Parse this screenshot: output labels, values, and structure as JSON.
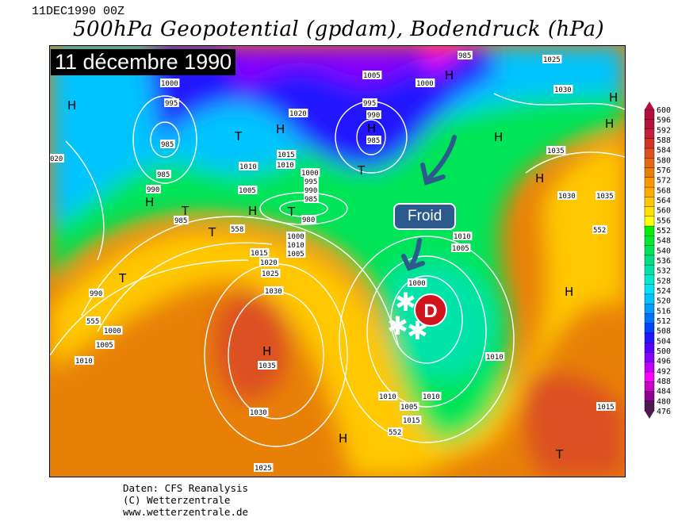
{
  "header": {
    "date_line": "11DEC1990 00Z",
    "title": "500hPa Geopotential (gpdam), Bodendruck (hPa)"
  },
  "banner": "11 décembre 1990",
  "annotations": {
    "froid_label": "Froid",
    "depression_label": "D",
    "snow_icon": "snowflake-icon",
    "arrow_icon": "arrow-down-icon"
  },
  "colorbar": {
    "labels": [
      "600",
      "596",
      "592",
      "588",
      "584",
      "580",
      "576",
      "572",
      "568",
      "564",
      "560",
      "556",
      "552",
      "548",
      "540",
      "536",
      "532",
      "528",
      "524",
      "520",
      "516",
      "512",
      "508",
      "504",
      "500",
      "496",
      "492",
      "488",
      "484",
      "480",
      "476"
    ],
    "colors": [
      "#b3103c",
      "#b8103c",
      "#c4203a",
      "#cf3424",
      "#dc5020",
      "#e56814",
      "#e88008",
      "#ff9900",
      "#ffaa00",
      "#ffc800",
      "#ffe000",
      "#ffff00",
      "#00f000",
      "#00ea30",
      "#00e458",
      "#00de80",
      "#00e4aa",
      "#00e8d0",
      "#00e4f4",
      "#00c4ff",
      "#009cff",
      "#0070ff",
      "#0044ff",
      "#2414ff",
      "#5400ff",
      "#8400ff",
      "#c000ff",
      "#ff00ff",
      "#c800c8",
      "#900090",
      "#501850"
    ]
  },
  "isobar_labels": [
    "1000",
    "995",
    "985",
    "985",
    "990",
    "985",
    "1020",
    "1015",
    "1010",
    "1010",
    "1005",
    "1000",
    "995",
    "990",
    "985",
    "980",
    "1005",
    "995",
    "990",
    "985",
    "1000",
    "985",
    "1025",
    "1030",
    "1035",
    "020",
    "558",
    "1015",
    "1020",
    "1025",
    "990",
    "555",
    "1000",
    "1005",
    "1010",
    "1030",
    "1035",
    "1030",
    "1025",
    "1000",
    "1010",
    "1005",
    "1010",
    "1005",
    "1000",
    "1010",
    "1005",
    "1010",
    "1015",
    "552",
    "1010",
    "1030",
    "1035",
    "552",
    "1015"
  ],
  "pressure_centers": [
    "H",
    "H",
    "T",
    "T",
    "H",
    "H",
    "T",
    "H",
    "T",
    "T",
    "H",
    "H",
    "H",
    "H",
    "H",
    "H",
    "T",
    "H",
    "H",
    "T"
  ],
  "footer": {
    "line1": "Daten: CFS Reanalysis",
    "line2": "(C) Wetterzentrale",
    "line3": "www.wetterzentrale.de"
  }
}
